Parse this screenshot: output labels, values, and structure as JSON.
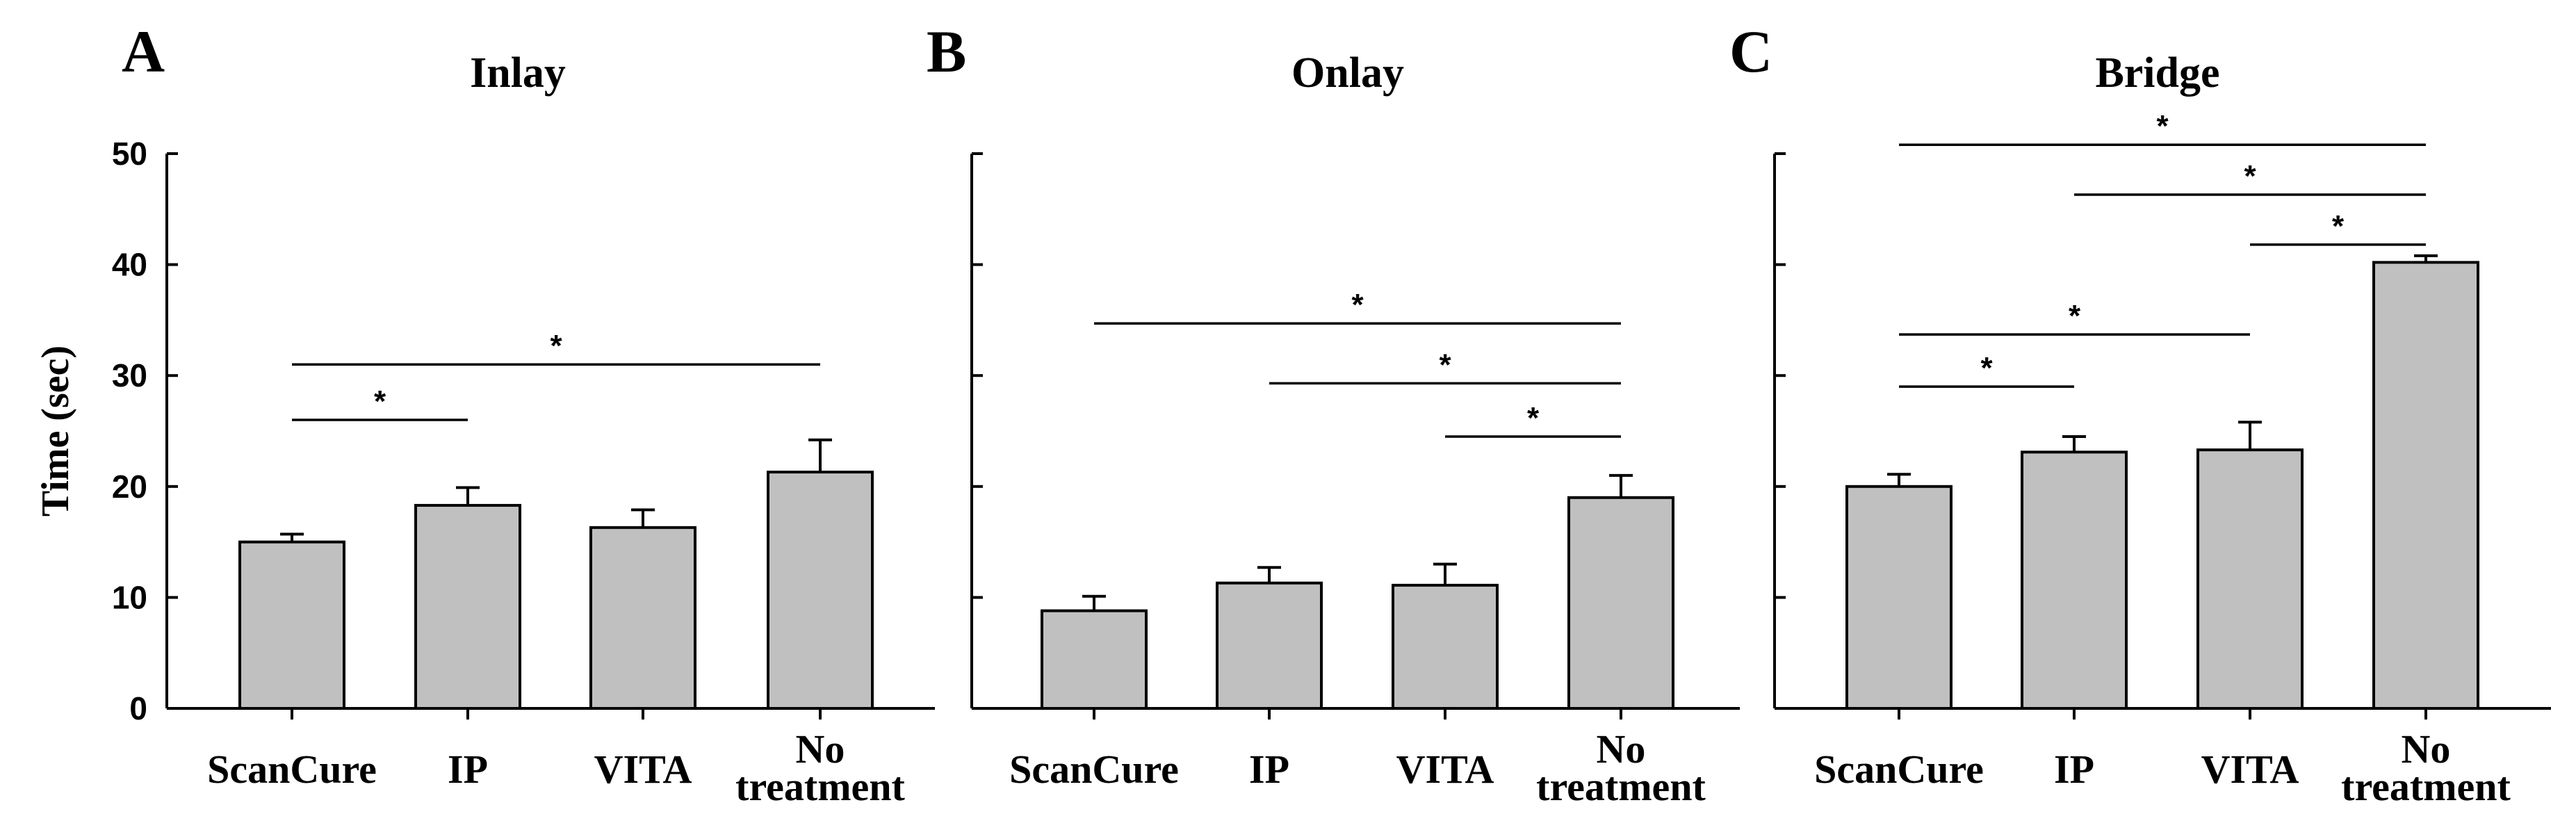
{
  "chart_data": [
    {
      "type": "bar",
      "panel": "A",
      "title": "Inlay",
      "ylabel": "Time (sec)",
      "ylim": [
        0,
        50
      ],
      "yticks": [
        "0",
        "10",
        "20",
        "30",
        "40",
        "50"
      ],
      "categories": [
        [
          "ScanCure"
        ],
        [
          "IP"
        ],
        [
          "VITA"
        ],
        [
          "No",
          "treatment"
        ]
      ],
      "values": [
        15.0,
        18.3,
        16.3,
        21.3
      ],
      "errors": [
        0.7,
        1.6,
        1.6,
        2.9
      ],
      "significance": [
        {
          "from": 0,
          "to": 1,
          "y": 26,
          "label": "*"
        },
        {
          "from": 0,
          "to": 3,
          "y": 31,
          "label": "*"
        }
      ]
    },
    {
      "type": "bar",
      "panel": "B",
      "title": "Onlay",
      "ylim": [
        0,
        50
      ],
      "categories": [
        [
          "ScanCure"
        ],
        [
          "IP"
        ],
        [
          "VITA"
        ],
        [
          "No",
          "treatment"
        ]
      ],
      "values": [
        8.8,
        11.3,
        11.1,
        19.0
      ],
      "errors": [
        1.3,
        1.4,
        1.9,
        2.0
      ],
      "significance": [
        {
          "from": 2,
          "to": 3,
          "y": 24.5,
          "label": "*"
        },
        {
          "from": 1,
          "to": 3,
          "y": 29.3,
          "label": "*"
        },
        {
          "from": 0,
          "to": 3,
          "y": 34.7,
          "label": "*"
        }
      ]
    },
    {
      "type": "bar",
      "panel": "C",
      "title": "Bridge",
      "ylim": [
        0,
        50
      ],
      "categories": [
        [
          "ScanCure"
        ],
        [
          "IP"
        ],
        [
          "VITA"
        ],
        [
          "No",
          "treatment"
        ]
      ],
      "values": [
        20.0,
        23.1,
        23.3,
        40.2
      ],
      "errors": [
        1.1,
        1.4,
        2.5,
        0.6
      ],
      "significance": [
        {
          "from": 0,
          "to": 1,
          "y": 29,
          "label": "*"
        },
        {
          "from": 0,
          "to": 2,
          "y": 33.7,
          "label": "*"
        },
        {
          "from": 2,
          "to": 3,
          "y": 41.8,
          "label": "*"
        },
        {
          "from": 1,
          "to": 3,
          "y": 46.3,
          "label": "*"
        },
        {
          "from": 0,
          "to": 3,
          "y": 50.8,
          "label": "*"
        }
      ]
    }
  ]
}
